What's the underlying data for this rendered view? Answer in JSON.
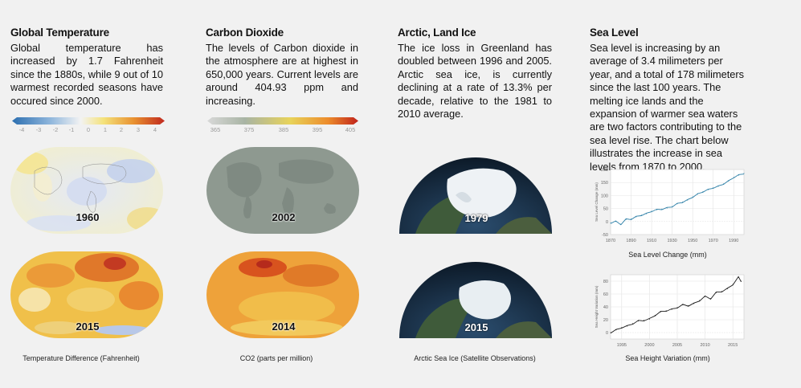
{
  "columns": [
    {
      "title": "Global Temperature",
      "body": "Global temperature has increased by 1.7 Fahrenheit since the 1880s, while 9 out of 10 warmest recorded seasons have occured since 2000.",
      "scale_ticks": [
        "-4",
        "-3",
        "-2",
        "-1",
        "0",
        "1",
        "2",
        "3",
        "4"
      ],
      "years": [
        "1960",
        "2015"
      ],
      "caption": "Temperature Difference (Fahrenheit)"
    },
    {
      "title": "Carbon Dioxide",
      "body": "The levels of Carbon dioxide in the atmosphere are at highest in 650,000 years. Current levels are around 404.93 ppm and increasing.",
      "scale_ticks": [
        "365",
        "375",
        "385",
        "395",
        "405"
      ],
      "years": [
        "2002",
        "2014"
      ],
      "caption": "CO2 (parts per million)"
    },
    {
      "title": "Arctic, Land Ice",
      "body": "The ice loss in Greenland has doubled between 1996 and 2005. Arctic sea ice, is currently declining at a rate of 13.3% per decade, relative to the 1981 to 2010 average.",
      "years": [
        "1979",
        "2015"
      ],
      "caption": "Arctic Sea Ice (Satellite Observations)"
    },
    {
      "title": "Sea Level",
      "body": "Sea level is increasing by an average of 3.4 milimeters per year, and a total of 178 milimeters since the last 100 years. The melting ice lands and the expansion of warmer sea waters are two factors contributing to the sea level rise. The chart below illustrates the increase in sea levels from 1870 to 2000."
    }
  ],
  "colors": {
    "background": "#f1f1f1",
    "line_chart_1": "#2a7ea6",
    "line_chart_2": "#1a1a1a"
  },
  "chart_data": [
    {
      "type": "line",
      "title": "Sea Level Change (mm)",
      "ylabel": "Sea Level Change (mm)",
      "xlabel": "",
      "xlim": [
        1870,
        2000
      ],
      "ylim": [
        -50,
        200
      ],
      "xticks": [
        "1870",
        "1890",
        "1910",
        "1930",
        "1950",
        "1970",
        "1990"
      ],
      "yticks": [
        "200",
        "150",
        "100",
        "50",
        "0",
        "-50"
      ],
      "x": [
        1870,
        1875,
        1880,
        1885,
        1890,
        1895,
        1900,
        1905,
        1910,
        1915,
        1920,
        1925,
        1930,
        1935,
        1940,
        1945,
        1950,
        1955,
        1960,
        1965,
        1970,
        1975,
        1980,
        1985,
        1990,
        1995,
        2000
      ],
      "values": [
        -5,
        0,
        -10,
        8,
        10,
        18,
        25,
        30,
        40,
        45,
        48,
        52,
        58,
        68,
        75,
        82,
        95,
        105,
        115,
        122,
        130,
        135,
        145,
        155,
        170,
        178,
        185
      ]
    },
    {
      "type": "line",
      "title": "Sea Height Variation (mm)",
      "ylabel": "Sea Height Variation (mm)",
      "xlabel": "",
      "xlim": [
        1993,
        2017
      ],
      "ylim": [
        -10,
        90
      ],
      "xticks": [
        "1995",
        "2000",
        "2005",
        "2010",
        "2015"
      ],
      "yticks": [
        "80",
        "60",
        "40",
        "20",
        "0"
      ],
      "x": [
        1993,
        1994,
        1995,
        1996,
        1997,
        1998,
        1999,
        2000,
        2001,
        2002,
        2003,
        2004,
        2005,
        2006,
        2007,
        2008,
        2009,
        2010,
        2011,
        2012,
        2013,
        2014,
        2015,
        2016,
        2016.5
      ],
      "values": [
        0,
        4,
        8,
        10,
        14,
        18,
        19,
        21,
        27,
        32,
        34,
        36,
        39,
        43,
        42,
        45,
        50,
        56,
        53,
        62,
        64,
        68,
        75,
        86,
        80
      ]
    }
  ]
}
